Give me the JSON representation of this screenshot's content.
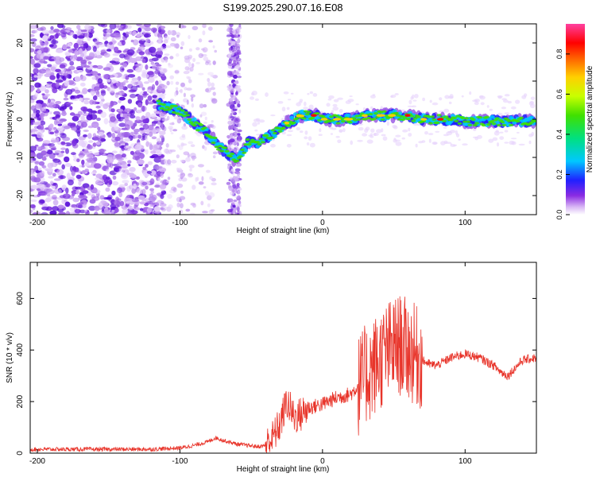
{
  "title": "S199.2025.290.07.16.E08",
  "colors": {
    "snr_line": "#e8342a",
    "blob_purple": "#8a2be2",
    "frame": "#000000"
  },
  "chart_data": [
    {
      "type": "heatmap",
      "name": "spectrogram",
      "xlabel": "Height of straight line (km)",
      "ylabel": "Frequency (Hz)",
      "xlim": [
        -205,
        150
      ],
      "ylim": [
        -25,
        25
      ],
      "x_ticks": [
        -200,
        -100,
        0,
        100
      ],
      "x_tick_labels": [
        "-200",
        "-100",
        "0",
        "100"
      ],
      "y_ticks": [
        -20,
        -10,
        0,
        10,
        20
      ],
      "y_tick_labels": [
        "-20",
        "-10",
        "0",
        "10",
        "20"
      ],
      "ridge_trace": {
        "x": [
          -115,
          -100,
          -90,
          -80,
          -70,
          -60,
          -52,
          -45,
          -35,
          -25,
          -15,
          -5,
          0,
          10,
          20,
          30,
          40,
          50,
          60,
          70,
          80,
          90,
          100,
          110,
          120,
          130,
          140,
          150
        ],
        "y": [
          4,
          2,
          -1,
          -4,
          -8,
          -11,
          -6,
          -6,
          -4,
          -1,
          1,
          1,
          0,
          0,
          0,
          1,
          1,
          1,
          1,
          0,
          0,
          0,
          -0.5,
          -0.5,
          -0.5,
          -0.5,
          -0.5,
          -0.5
        ]
      },
      "colorbar": {
        "label": "Normalized spectral amplitude",
        "range": [
          0,
          0.95
        ],
        "ticks": [
          0.0,
          0.2,
          0.4,
          0.6,
          0.8
        ],
        "tick_labels": [
          "0.0",
          "0.2",
          "0.4",
          "0.6",
          "0.8"
        ]
      }
    },
    {
      "type": "line",
      "name": "snr",
      "xlabel": "Height of straight line (km)",
      "ylabel": "SNR (10 * v/v)",
      "xlim": [
        -205,
        150
      ],
      "ylim": [
        0,
        740
      ],
      "x_ticks": [
        -200,
        -100,
        0,
        100
      ],
      "x_tick_labels": [
        "-200",
        "-100",
        "0",
        "100"
      ],
      "y_ticks": [
        0,
        200,
        400,
        600
      ],
      "y_tick_labels": [
        "0",
        "200",
        "400",
        "600"
      ],
      "series": [
        {
          "name": "SNR",
          "x": [
            -205,
            -180,
            -150,
            -120,
            -100,
            -90,
            -80,
            -75,
            -70,
            -60,
            -45,
            -40,
            -35,
            -30,
            -25,
            -20,
            -15,
            -10,
            0,
            10,
            20,
            25,
            30,
            35,
            40,
            45,
            50,
            55,
            60,
            65,
            70,
            75,
            80,
            90,
            100,
            110,
            115,
            120,
            125,
            130,
            135,
            140,
            150
          ],
          "y": [
            15,
            15,
            15,
            15,
            20,
            30,
            45,
            60,
            50,
            35,
            25,
            30,
            60,
            110,
            200,
            140,
            150,
            175,
            190,
            215,
            230,
            260,
            300,
            330,
            360,
            390,
            410,
            420,
            400,
            380,
            360,
            345,
            340,
            370,
            385,
            370,
            355,
            340,
            315,
            300,
            330,
            360,
            370
          ]
        }
      ]
    }
  ]
}
